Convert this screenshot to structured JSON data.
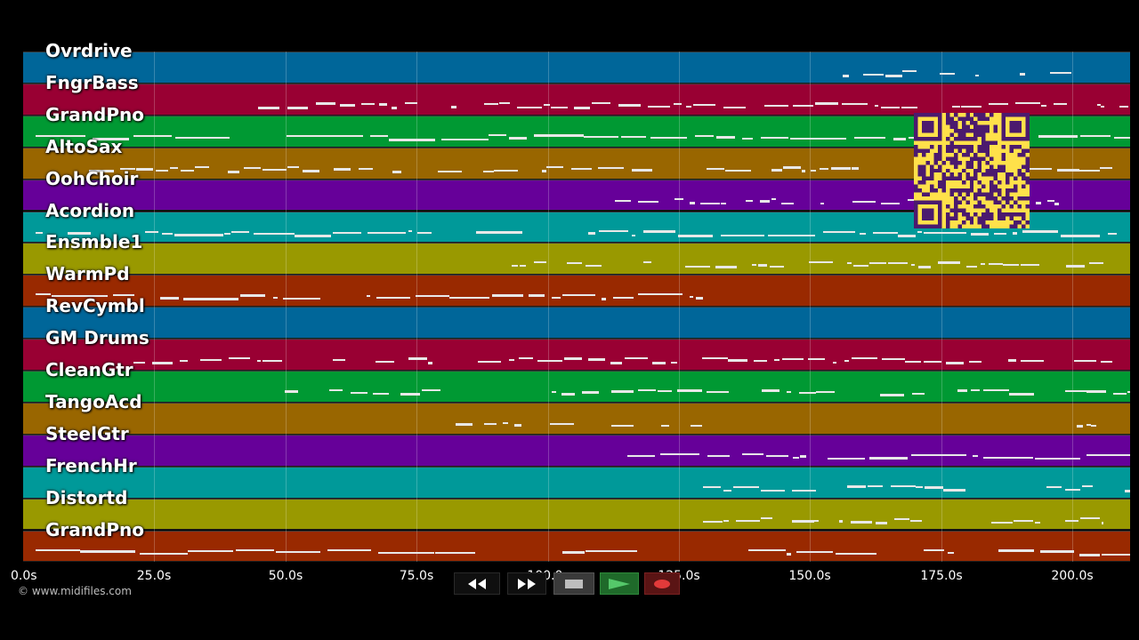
{
  "tracks": [
    {
      "name": "Ovrdrive",
      "color": "#006699"
    },
    {
      "name": "FngrBass",
      "color": "#990033"
    },
    {
      "name": "GrandPno",
      "color": "#009933"
    },
    {
      "name": "AltoSax",
      "color": "#996600"
    },
    {
      "name": "OohChoir",
      "color": "#660099"
    },
    {
      "name": "Acordion",
      "color": "#009999"
    },
    {
      "name": "Ensmble1",
      "color": "#999900"
    },
    {
      "name": "WarmPd",
      "color": "#992900"
    },
    {
      "name": "RevCymbl",
      "color": "#006699"
    },
    {
      "name": "GM Drums",
      "color": "#990033"
    },
    {
      "name": "CleanGtr",
      "color": "#009933"
    },
    {
      "name": "TangoAcd",
      "color": "#996600"
    },
    {
      "name": "SteelGtr",
      "color": "#660099"
    },
    {
      "name": "FrenchHr",
      "color": "#009999"
    },
    {
      "name": "Distortd",
      "color": "#999900"
    },
    {
      "name": "GrandPno",
      "color": "#992900"
    }
  ],
  "time_axis": {
    "ticks": [
      "0.0s",
      "25.0s",
      "50.0s",
      "75.0s",
      "100.0s",
      "125.0s",
      "150.0s",
      "175.0s",
      "200.0s"
    ],
    "max_seconds": 211
  },
  "credit": "© www.midifiles.com",
  "controls": [
    {
      "name": "rewind-button",
      "icon": "rewind-icon"
    },
    {
      "name": "fast-forward-button",
      "icon": "fast-forward-icon"
    },
    {
      "name": "stop-button",
      "icon": "stop-icon"
    },
    {
      "name": "play-button",
      "icon": "play-icon"
    },
    {
      "name": "record-button",
      "icon": "record-icon"
    }
  ],
  "colors": {
    "background": "#000000",
    "note": "#e8e8e8",
    "play_accent": "#55c86a",
    "record_accent": "#e23a3a",
    "qr_background": "#ffe14a",
    "qr_modules": "#4b1a6e"
  }
}
